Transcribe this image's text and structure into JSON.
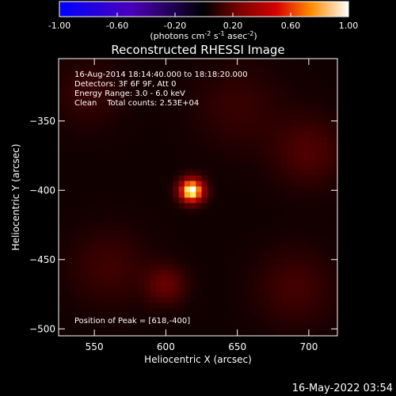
{
  "chart_data": {
    "type": "heatmap",
    "title": "Reconstructed RHESSI Image",
    "xlabel": "Heliocentric X (arcsec)",
    "ylabel": "Heliocentric Y (arcsec)",
    "xlim": [
      525,
      720
    ],
    "ylim": [
      -505,
      -305
    ],
    "x_ticks": [
      550,
      600,
      650,
      700
    ],
    "y_ticks": [
      -350,
      -400,
      -450,
      -500
    ],
    "colorbar": {
      "range": [
        -1.0,
        1.0
      ],
      "ticks": [
        "-1.00",
        "-0.60",
        "-0.20",
        "0.20",
        "0.60",
        "1.00"
      ],
      "label_pre": "(photons cm",
      "label_exp1": "-2",
      "label_mid": " s",
      "label_exp2": "-1",
      "label_post": " asec",
      "label_exp3": "-2",
      "label_end": ")"
    },
    "annotations": [
      "16-Aug-2014 18:14:40.000 to 18:18:20.000",
      "Detectors: 3F 6F 9F, Att 0",
      "Energy Range: 3.0 - 6.0 keV",
      "Clean    Total counts: 2.53E+04"
    ],
    "peak_label": "Position of Peak = [618,-400]",
    "peak": {
      "x": 618,
      "y": -400,
      "value": 1.0
    },
    "sources": [
      {
        "x": 618,
        "y": -400,
        "amp": 1.0,
        "sigma": 6
      },
      {
        "x": 600,
        "y": -468,
        "amp": 0.22,
        "sigma": 10
      },
      {
        "x": 700,
        "y": -372,
        "amp": 0.16,
        "sigma": 18
      },
      {
        "x": 560,
        "y": -455,
        "amp": 0.12,
        "sigma": 20
      },
      {
        "x": 650,
        "y": -340,
        "amp": 0.1,
        "sigma": 22
      },
      {
        "x": 690,
        "y": -470,
        "amp": 0.13,
        "sigma": 20
      },
      {
        "x": 545,
        "y": -330,
        "amp": 0.1,
        "sigma": 18
      }
    ]
  },
  "footer": {
    "timestamp": "16-May-2022 03:54"
  }
}
